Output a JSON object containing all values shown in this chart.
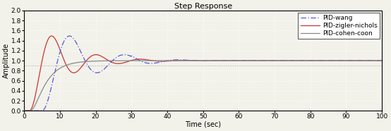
{
  "title": "Step Response",
  "xlabel": "Time (sec)",
  "ylabel": "Amplitude",
  "xlim": [
    0,
    100
  ],
  "ylim": [
    0,
    2
  ],
  "yticks": [
    0,
    0.2,
    0.4,
    0.6,
    0.8,
    1.0,
    1.2,
    1.4,
    1.6,
    1.8,
    2.0
  ],
  "xticks": [
    0,
    10,
    20,
    30,
    40,
    50,
    60,
    70,
    80,
    90,
    100
  ],
  "legend_labels": [
    "PID-wang",
    "PID-zigler-nichols",
    "PID-cohen-coon"
  ],
  "wang_color": "#5555dd",
  "zn_color": "#cc3333",
  "cc_color": "#888888",
  "bg_color": "#f2f2ea",
  "grid_color": "#ffffff",
  "title_fontsize": 8,
  "label_fontsize": 7,
  "tick_fontsize": 6.5,
  "legend_fontsize": 6.5,
  "hline_color": "#aaaaaa",
  "hline_y": 0.9
}
